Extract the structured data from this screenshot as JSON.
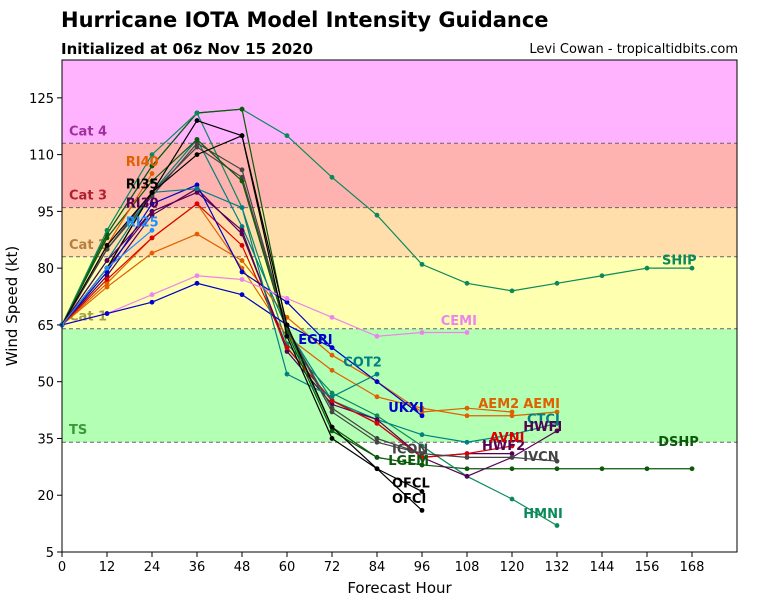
{
  "header": {
    "title": "Hurricane IOTA Model Intensity Guidance",
    "subtitle": "Initialized at 06z Nov 15 2020",
    "credit": "Levi Cowan - tropicaltidbits.com"
  },
  "chart_data": {
    "type": "line",
    "xlabel": "Forecast Hour",
    "ylabel": "Wind Speed (kt)",
    "xlim": [
      0,
      180
    ],
    "ylim": [
      5,
      135
    ],
    "xticks": [
      0,
      12,
      24,
      36,
      48,
      60,
      72,
      84,
      96,
      108,
      120,
      132,
      144,
      156,
      168
    ],
    "yticks": [
      5,
      20,
      35,
      50,
      65,
      80,
      95,
      110,
      125
    ],
    "bands": [
      {
        "label": "",
        "from": 5,
        "to": 34,
        "color": "#ffffff"
      },
      {
        "label": "TS",
        "from": 34,
        "to": 64,
        "color": "#b3ffb3",
        "label_color": "#3a9a3a"
      },
      {
        "label": "Cat 1",
        "from": 64,
        "to": 83,
        "color": "#ffffb0",
        "label_color": "#a0a040"
      },
      {
        "label": "Cat 2",
        "from": 83,
        "to": 96,
        "color": "#ffdeac",
        "label_color": "#b38040"
      },
      {
        "label": "Cat 3",
        "from": 96,
        "to": 113,
        "color": "#ffb3b0",
        "label_color": "#b02030"
      },
      {
        "label": "Cat 4",
        "from": 113,
        "to": 135,
        "color": "#ffb3ff",
        "label_color": "#a030a0"
      }
    ],
    "series": [
      {
        "name": "SHIP",
        "color": "#0a8a5a",
        "x": [
          0,
          12,
          24,
          36,
          48,
          60,
          72,
          84,
          96,
          108,
          120,
          132,
          144,
          156,
          168
        ],
        "y": [
          65,
          89,
          107,
          121,
          122,
          115,
          104,
          94,
          81,
          76,
          74,
          76,
          78,
          80,
          80
        ],
        "label_x": 168,
        "label_y": 80
      },
      {
        "name": "DSHP",
        "color": "#0a5a0a",
        "x": [
          0,
          12,
          24,
          36,
          48,
          60,
          72,
          84,
          96,
          108,
          120,
          132,
          144,
          156,
          168
        ],
        "y": [
          65,
          89,
          107,
          121,
          122,
          64,
          38,
          30,
          28,
          27,
          27,
          27,
          27,
          27,
          27
        ],
        "label_x": 168,
        "label_y": 27
      },
      {
        "name": "HMNI",
        "color": "#0a8a5a",
        "x": [
          0,
          12,
          24,
          36,
          48,
          60,
          72,
          84,
          96,
          108,
          120,
          132
        ],
        "y": [
          65,
          90,
          110,
          121,
          96,
          60,
          47,
          41,
          33,
          25,
          19,
          12
        ],
        "label_x": 132,
        "label_y": 12
      },
      {
        "name": "AEMI",
        "color": "#e06000",
        "x": [
          0,
          12,
          24,
          36,
          48,
          60,
          72,
          84,
          96,
          108,
          120,
          132
        ],
        "y": [
          65,
          76,
          88,
          97,
          80,
          62,
          53,
          46,
          43,
          41,
          41,
          42
        ],
        "label_x": 132,
        "label_y": 42
      },
      {
        "name": "AEM2",
        "color": "#e06000",
        "x": [
          0,
          12,
          24,
          36,
          48,
          60,
          72,
          84,
          96,
          108,
          120
        ],
        "y": [
          65,
          75,
          84,
          89,
          82,
          67,
          57,
          50,
          42,
          43,
          42
        ],
        "label_x": 120,
        "label_y": 42
      },
      {
        "name": "CTCI",
        "color": "#008080",
        "x": [
          0,
          12,
          24,
          36,
          48,
          60,
          72,
          84,
          96,
          108,
          120,
          132
        ],
        "y": [
          65,
          85,
          100,
          114,
          91,
          64,
          45,
          40,
          36,
          34,
          36,
          39
        ],
        "label_x": 132,
        "label_y": 39
      },
      {
        "name": "HWFI",
        "color": "#550055",
        "x": [
          0,
          12,
          24,
          36,
          48,
          60,
          72,
          84,
          96,
          108,
          120,
          132
        ],
        "y": [
          65,
          80,
          95,
          100,
          90,
          58,
          44,
          40,
          30,
          25,
          30,
          37
        ],
        "label_x": 132,
        "label_y": 37
      },
      {
        "name": "HWF2",
        "color": "#550055",
        "x": [
          0,
          12,
          24,
          36,
          48,
          60,
          72,
          84,
          96,
          108,
          120
        ],
        "y": [
          65,
          78,
          94,
          101,
          89,
          59,
          45,
          39,
          30,
          31,
          31
        ],
        "label_x": 120,
        "label_y": 31
      },
      {
        "name": "AVNI",
        "color": "#dd0000",
        "x": [
          0,
          12,
          24,
          36,
          48,
          60,
          72,
          84,
          96,
          108,
          120
        ],
        "y": [
          65,
          77,
          88,
          97,
          86,
          59,
          45,
          39,
          30,
          31,
          33
        ],
        "label_x": 120,
        "label_y": 33
      },
      {
        "name": "IVCN",
        "color": "#444444",
        "x": [
          0,
          12,
          24,
          36,
          48,
          60,
          72,
          84,
          96,
          108,
          120,
          132
        ],
        "y": [
          65,
          85,
          100,
          112,
          104,
          64,
          43,
          35,
          31,
          30,
          30,
          29
        ],
        "label_x": 132,
        "label_y": 29
      },
      {
        "name": "ICON",
        "color": "#444444",
        "x": [
          0,
          12,
          24,
          36,
          48,
          60,
          72,
          84,
          96
        ],
        "y": [
          65,
          85,
          99,
          113,
          106,
          64,
          42,
          34,
          31
        ],
        "label_x": 96,
        "label_y": 31
      },
      {
        "name": "LGEM",
        "color": "#0a5a0a",
        "x": [
          0,
          12,
          24,
          36,
          48,
          60,
          72,
          84,
          96
        ],
        "y": [
          65,
          88,
          103,
          114,
          103,
          63,
          37,
          30,
          28
        ],
        "label_x": 96,
        "label_y": 28
      },
      {
        "name": "UKXI",
        "color": "#0000cc",
        "x": [
          0,
          12,
          24,
          36,
          48,
          60,
          72,
          84,
          96
        ],
        "y": [
          65,
          79,
          97,
          102,
          79,
          71,
          59,
          50,
          41
        ],
        "label_x": 96,
        "label_y": 41
      },
      {
        "name": "CEMI",
        "color": "#ee82ee",
        "x": [
          0,
          12,
          24,
          36,
          48,
          60,
          72,
          84,
          96,
          108
        ],
        "y": [
          65,
          68,
          73,
          78,
          77,
          72,
          67,
          62,
          63,
          63
        ],
        "label_x": 108,
        "label_y": 63
      },
      {
        "name": "EGRI",
        "color": "#0000cc",
        "x": [
          0,
          12,
          24,
          36,
          48,
          60,
          72
        ],
        "y": [
          65,
          68,
          71,
          76,
          73,
          65,
          59
        ],
        "label_x": 72,
        "label_y": 59
      },
      {
        "name": "COT2",
        "color": "#008080",
        "x": [
          0,
          12,
          24,
          36,
          48,
          60,
          72,
          84
        ],
        "y": [
          65,
          82,
          100,
          101,
          96,
          52,
          46,
          52
        ],
        "label_x": 84,
        "label_y": 52
      },
      {
        "name": "OFCL",
        "color": "#000000",
        "x": [
          0,
          12,
          24,
          36,
          48,
          60,
          72,
          84,
          96
        ],
        "y": [
          65,
          80,
          100,
          110,
          115,
          65,
          38,
          27,
          21
        ],
        "label_x": 96,
        "label_y": 21
      },
      {
        "name": "OFCI",
        "color": "#000000",
        "x": [
          0,
          12,
          24,
          36,
          48,
          60,
          72,
          84,
          96
        ],
        "y": [
          65,
          80,
          100,
          119,
          115,
          62,
          35,
          27,
          16
        ],
        "label_x": 96,
        "label_y": 16
      },
      {
        "name": "RI40",
        "color": "#e06000",
        "x": [
          0,
          12,
          24
        ],
        "y": [
          65,
          86,
          105
        ],
        "label_x": 24,
        "label_y": 105
      },
      {
        "name": "RI35",
        "color": "#000000",
        "x": [
          0,
          12,
          24
        ],
        "y": [
          65,
          86,
          100
        ],
        "label_x": 24,
        "label_y": 100
      },
      {
        "name": "RI30",
        "color": "#550055",
        "x": [
          0,
          12,
          24
        ],
        "y": [
          65,
          82,
          95
        ],
        "label_x": 24,
        "label_y": 95
      },
      {
        "name": "RI25",
        "color": "#1e90ff",
        "x": [
          0,
          12,
          24
        ],
        "y": [
          65,
          80,
          90
        ],
        "label_x": 24,
        "label_y": 90
      }
    ],
    "labels": [
      {
        "text": "SHIP",
        "x": 160,
        "y": 81,
        "color": "#0a8a5a"
      },
      {
        "text": "DSHP",
        "x": 159,
        "y": 33,
        "color": "#0a5a0a"
      },
      {
        "text": "HMNI",
        "x": 123,
        "y": 14,
        "color": "#0a8a5a"
      },
      {
        "text": "AEMI",
        "x": 123,
        "y": 43,
        "color": "#e06000"
      },
      {
        "text": "AEM2",
        "x": 111,
        "y": 43,
        "color": "#e06000"
      },
      {
        "text": "CTCI",
        "x": 124,
        "y": 39,
        "color": "#008080"
      },
      {
        "text": "HWFI",
        "x": 123,
        "y": 37,
        "color": "#550055"
      },
      {
        "text": "HWF2",
        "x": 112,
        "y": 32,
        "color": "#550055"
      },
      {
        "text": "AVNI",
        "x": 114,
        "y": 34,
        "color": "#dd0000"
      },
      {
        "text": "IVCN",
        "x": 123,
        "y": 29,
        "color": "#444444"
      },
      {
        "text": "ICON",
        "x": 88,
        "y": 31,
        "color": "#444444"
      },
      {
        "text": "LGEM",
        "x": 87,
        "y": 28,
        "color": "#0a5a0a"
      },
      {
        "text": "UKXI",
        "x": 87,
        "y": 42,
        "color": "#0000cc"
      },
      {
        "text": "CEMI",
        "x": 101,
        "y": 65,
        "color": "#ee82ee"
      },
      {
        "text": "EGRI",
        "x": 63,
        "y": 60,
        "color": "#0000cc"
      },
      {
        "text": "COT2",
        "x": 75,
        "y": 54,
        "color": "#008080"
      },
      {
        "text": "OFCL",
        "x": 88,
        "y": 22,
        "color": "#000000"
      },
      {
        "text": "OFCI",
        "x": 88,
        "y": 18,
        "color": "#000000"
      },
      {
        "text": "RI40",
        "x": 17,
        "y": 107,
        "color": "#e06000"
      },
      {
        "text": "RI35",
        "x": 17,
        "y": 101,
        "color": "#000000"
      },
      {
        "text": "RI30",
        "x": 17,
        "y": 96,
        "color": "#550055"
      },
      {
        "text": "RI25",
        "x": 17,
        "y": 91,
        "color": "#1e90ff"
      }
    ]
  }
}
